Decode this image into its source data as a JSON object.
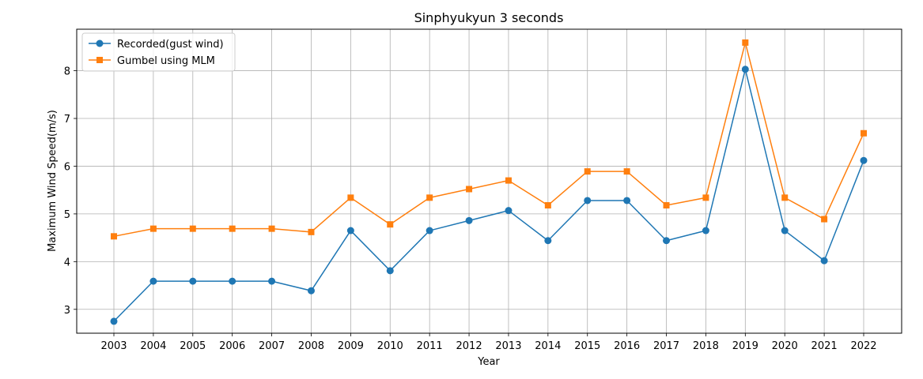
{
  "chart_data": {
    "type": "line",
    "title": "Sinphyukyun 3 seconds",
    "xlabel": "Year",
    "ylabel": "Maximum Wind Speed(m/s)",
    "categories": [
      "2003",
      "2004",
      "2005",
      "2006",
      "2007",
      "2008",
      "2009",
      "2010",
      "2011",
      "2012",
      "2013",
      "2014",
      "2015",
      "2016",
      "2017",
      "2018",
      "2019",
      "2020",
      "2021",
      "2022"
    ],
    "ylim": [
      2.5,
      8.87
    ],
    "yticks": [
      3,
      4,
      5,
      6,
      7,
      8
    ],
    "grid": true,
    "legend_position": "top-left",
    "series": [
      {
        "name": "Recorded(gust wind)",
        "color": "#1f77b4",
        "marker": "circle",
        "values": [
          2.75,
          3.59,
          3.59,
          3.59,
          3.59,
          3.39,
          4.65,
          3.81,
          4.65,
          4.86,
          5.07,
          4.44,
          5.28,
          5.28,
          4.44,
          4.65,
          8.03,
          4.65,
          4.02,
          6.12
        ]
      },
      {
        "name": "Gumbel using MLM",
        "color": "#ff7f0e",
        "marker": "square",
        "values": [
          4.53,
          4.69,
          4.69,
          4.69,
          4.69,
          4.62,
          5.34,
          4.78,
          5.34,
          5.52,
          5.7,
          5.18,
          5.89,
          5.89,
          5.18,
          5.34,
          8.59,
          5.34,
          4.89,
          6.69
        ]
      }
    ]
  }
}
